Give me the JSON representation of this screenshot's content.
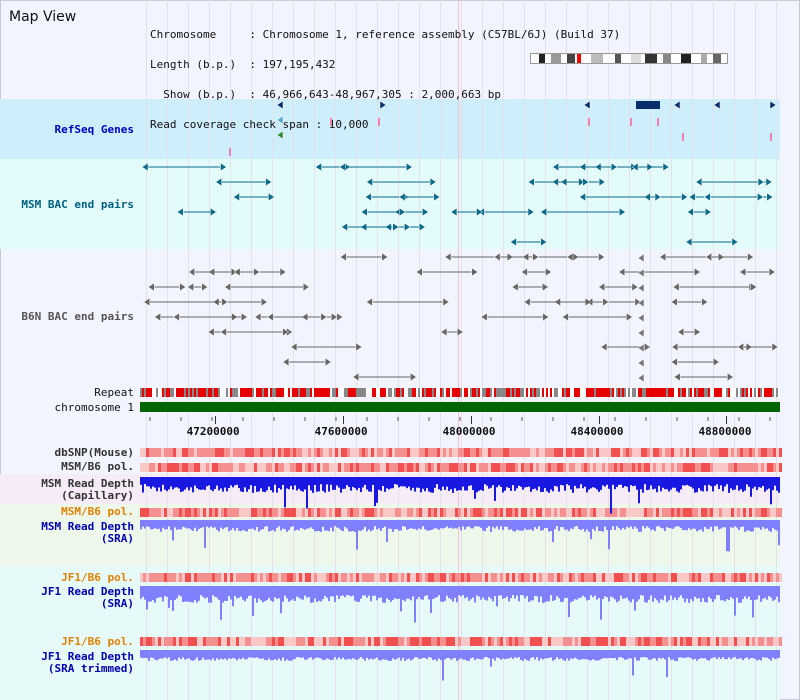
{
  "header": {
    "title": "Map View",
    "lines": [
      "Chromosome     : Chromosome 1, reference assembly (C57BL/6J) (Build 37)",
      "Length (b.p.)  : 197,195,432",
      "  Show (b.p.)  : 46,966,643-48,967,305 : 2,000,663 bp",
      "Read coverage check span : 10,000"
    ]
  },
  "tracks": [
    {
      "id": "refseq",
      "label": "RefSeq Genes",
      "color": "#0000c0"
    },
    {
      "id": "msm_bac",
      "label": "MSM BAC end pairs",
      "color": "#006080"
    },
    {
      "id": "b6n_bac",
      "label": "B6N BAC end pairs",
      "color": "#555555"
    },
    {
      "id": "repeat",
      "label": "Repeat",
      "color": "#111111"
    },
    {
      "id": "chromosome",
      "label": "chromosome 1",
      "color": "#111111"
    },
    {
      "id": "dbsnp",
      "label": "dbSNP(Mouse)",
      "color": "#333333"
    },
    {
      "id": "msm_b6_pol_1",
      "label": "MSM/B6 pol.",
      "color": "#333333"
    },
    {
      "id": "msm_depth_cap",
      "label": "MSM Read Depth\n(Capillary)",
      "color": "#333333"
    },
    {
      "id": "msm_b6_pol_2",
      "label": "MSM/B6 pol.",
      "color": "#e08000"
    },
    {
      "id": "msm_depth_sra",
      "label": "MSM Read Depth\n(SRA)",
      "color": "#0000b0"
    },
    {
      "id": "jf1_b6_pol_1",
      "label": "JF1/B6 pol.",
      "color": "#e08000"
    },
    {
      "id": "jf1_depth_sra",
      "label": "JF1 Read Depth\n(SRA)",
      "color": "#0000b0"
    },
    {
      "id": "jf1_b6_pol_2",
      "label": "JF1/B6 pol.",
      "color": "#e08000"
    },
    {
      "id": "jf1_depth_trim",
      "label": "JF1 Read Depth\n(SRA trimmed)",
      "color": "#0000b0"
    }
  ],
  "axis": {
    "range_bp": [
      46966643,
      48967305
    ],
    "ticks": [
      "47200000",
      "47600000",
      "48000000",
      "48400000",
      "48800000"
    ],
    "tick_values": [
      47200000,
      47600000,
      48000000,
      48400000,
      48800000
    ]
  },
  "colors": {
    "refseq_bg": "#cfeefc",
    "msm_bac_bg": "#e4fbfb",
    "chromosome_bar": "#006400",
    "repeat_red": "#e60000",
    "repeat_gray": "#888888",
    "polymorphism": "#f08080",
    "depth_capillary": "#1818e0",
    "depth_sra": "#8080ff",
    "sra_bg": "#eaf6ea",
    "jf1_bg": "#e6fafa"
  }
}
